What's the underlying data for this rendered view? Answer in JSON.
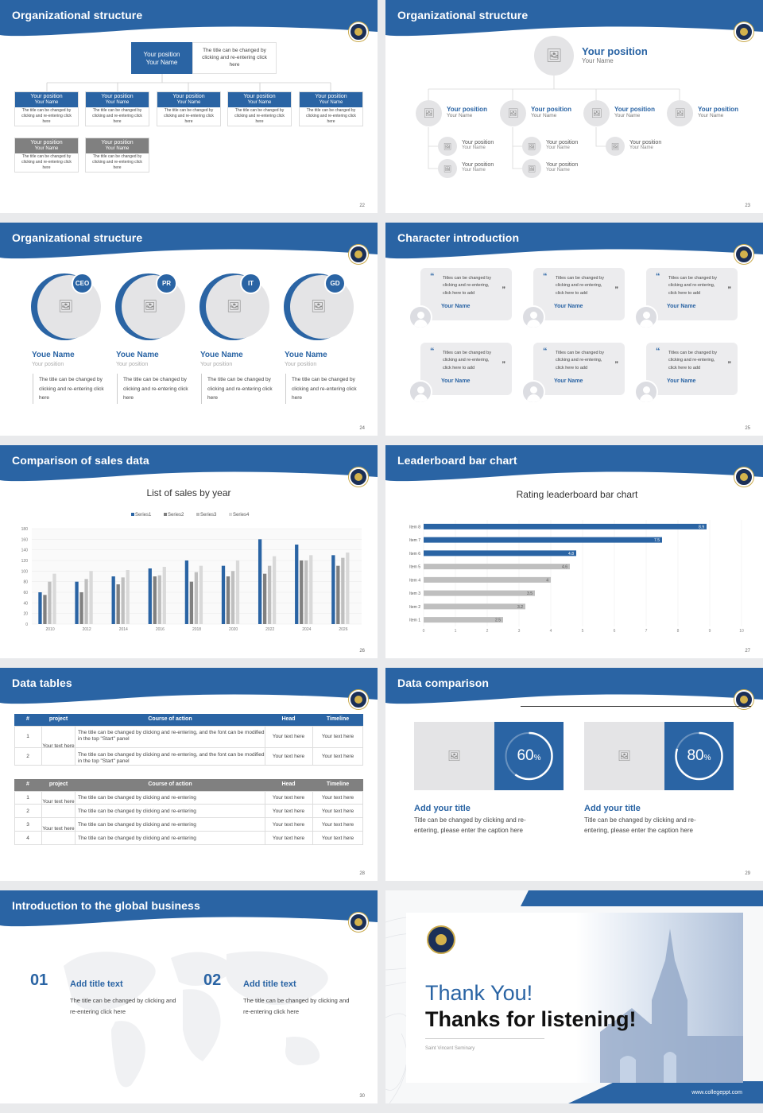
{
  "colors": {
    "accent": "#2a64a4",
    "gray": "#808080",
    "light": "#e4e4e6"
  },
  "icons": {
    "picture": "picture-plus-icon",
    "quote": "quote-icon",
    "user": "user-avatar-icon",
    "logo": "seminary-seal-logo"
  },
  "s22": {
    "title": "Organizational structure",
    "page": "22",
    "top": {
      "pos": "Your position",
      "name": "Your Name",
      "note": "The title can be changed by clicking and re-entering click here"
    },
    "row1": [
      {
        "pos": "Your position",
        "name": "Your Name",
        "note": "The title can be changed by clicking and re-entering click here"
      },
      {
        "pos": "Your position",
        "name": "Your Name",
        "note": "The title can be changed by clicking and re-entering click here"
      },
      {
        "pos": "Your position",
        "name": "Your Name",
        "note": "The title can be changed by clicking and re-entering click here"
      },
      {
        "pos": "Your position",
        "name": "Your Name",
        "note": "The title can be changed by clicking and re-entering click here"
      },
      {
        "pos": "Your position",
        "name": "Your Name",
        "note": "The title can be changed by clicking and re-entering click here"
      }
    ],
    "row2": [
      {
        "pos": "Your position",
        "name": "Your Name",
        "note": "The title can be changed by clicking and re-entering click here"
      },
      {
        "pos": "Your position",
        "name": "Your Name",
        "note": "The title can be changed by clicking and re-entering click here"
      }
    ]
  },
  "s23": {
    "title": "Organizational structure",
    "page": "23",
    "top": {
      "pos": "Your position",
      "name": "Your Name"
    },
    "mid": [
      {
        "pos": "Your position",
        "name": "Your Name"
      },
      {
        "pos": "Your position",
        "name": "Your Name"
      },
      {
        "pos": "Your position",
        "name": "Your Name"
      },
      {
        "pos": "Your position",
        "name": "Your Name"
      }
    ],
    "low": [
      {
        "pos": "Your position",
        "name": "Your Name"
      },
      {
        "pos": "Your position",
        "name": "Your Name"
      },
      {
        "pos": "Your position",
        "name": "Your Name"
      },
      {
        "pos": "Your position",
        "name": "Your Name"
      },
      {
        "pos": "Your position",
        "name": "Your Name"
      }
    ]
  },
  "s24": {
    "title": "Organizational structure",
    "page": "24",
    "members": [
      {
        "badge": "CEO",
        "name": "Youe Name",
        "pos": "Your position",
        "desc": "The title can be changed by clicking and re-entering click here"
      },
      {
        "badge": "PR",
        "name": "Youe Name",
        "pos": "Your position",
        "desc": "The title can be changed by clicking and re-entering click here"
      },
      {
        "badge": "IT",
        "name": "Youe Name",
        "pos": "Your position",
        "desc": "The title can be changed by clicking and re-entering click here"
      },
      {
        "badge": "GD",
        "name": "Youe Name",
        "pos": "Your position",
        "desc": "The title can be changed by clicking and re-entering click here"
      }
    ]
  },
  "s25": {
    "title": "Character introduction",
    "page": "25",
    "quote": "Titles can be changed by clicking and re-entering, click here to add",
    "name": "Your Name"
  },
  "s26": {
    "title": "Comparison of sales data",
    "page": "26"
  },
  "s27": {
    "title": "Leaderboard bar chart",
    "page": "27"
  },
  "chart_data": [
    {
      "type": "bar",
      "title": "List of sales by year",
      "categories": [
        "2010",
        "2012",
        "2014",
        "2016",
        "2018",
        "2020",
        "2022",
        "2024",
        "2026"
      ],
      "series": [
        {
          "name": "Series1",
          "values": [
            60,
            80,
            90,
            105,
            120,
            110,
            160,
            150,
            130
          ]
        },
        {
          "name": "Series2",
          "values": [
            55,
            60,
            75,
            90,
            80,
            90,
            95,
            120,
            110
          ]
        },
        {
          "name": "Series3",
          "values": [
            80,
            85,
            88,
            92,
            98,
            100,
            110,
            120,
            125
          ]
        },
        {
          "name": "Series4",
          "values": [
            95,
            100,
            102,
            108,
            110,
            120,
            128,
            130,
            135
          ]
        }
      ],
      "ylim": [
        0,
        180
      ],
      "yticks": [
        "0",
        "20",
        "40",
        "60",
        "80",
        "100",
        "120",
        "140",
        "160",
        "180"
      ],
      "legend": "top",
      "grid": true
    },
    {
      "type": "bar",
      "orientation": "horizontal",
      "title": "Rating leaderboard bar chart",
      "categories": [
        "Item 8",
        "Item 7",
        "Item 6",
        "Item 5",
        "Item 4",
        "Item 3",
        "Item 2",
        "Item 1"
      ],
      "values": [
        8.9,
        7.5,
        4.8,
        4.6,
        4,
        3.5,
        3.2,
        2.5
      ],
      "labels": [
        "8.9",
        "7.5",
        "4.8",
        "4.6",
        "4",
        "3.5",
        "3.2",
        "2.5"
      ],
      "xlim": [
        0,
        10
      ],
      "xticks": [
        "0",
        "1",
        "2",
        "3",
        "4",
        "5",
        "6",
        "7",
        "8",
        "9",
        "10"
      ]
    }
  ],
  "s28": {
    "title": "Data tables",
    "page": "28",
    "t1": {
      "headers": [
        "#",
        "project",
        "Course of action",
        "Head",
        "Timeline"
      ],
      "project": "Your text here",
      "rows": [
        {
          "n": "1",
          "action": "The title can be changed by clicking and re-entering, and the font can be modified in the top \"Start\" panel",
          "head": "Your text here",
          "time": "Your text here"
        },
        {
          "n": "2",
          "action": "The title can be changed by clicking and re-entering, and the font can be modified in the top \"Start\" panel",
          "head": "Your text here",
          "time": "Your text here"
        }
      ]
    },
    "t2": {
      "headers": [
        "#",
        "project",
        "Course of action",
        "Head",
        "Timeline"
      ],
      "project1": "Your text here",
      "project2": "Your text here",
      "rows": [
        {
          "n": "1",
          "action": "The title can be changed by clicking and re-entering",
          "head": "Your text here",
          "time": "Your text here"
        },
        {
          "n": "2",
          "action": "The title can be changed by clicking and re-entering",
          "head": "Your text here",
          "time": "Your text here"
        },
        {
          "n": "3",
          "action": "The title can be changed by clicking and re-entering",
          "head": "Your text here",
          "time": "Your text here"
        },
        {
          "n": "4",
          "action": "The title can be changed by clicking and re-entering",
          "head": "Your text here",
          "time": "Your text here"
        }
      ]
    }
  },
  "s29": {
    "title": "Data comparison",
    "page": "29",
    "cards": [
      {
        "percent": 60,
        "value": "60",
        "unit": "%",
        "heading": "Add your title",
        "desc": "Title can be changed by clicking and re-entering, please enter the caption here"
      },
      {
        "percent": 80,
        "value": "80",
        "unit": "%",
        "heading": "Add your title",
        "desc": "Title can be changed by clicking and re-entering, please enter the caption here"
      }
    ]
  },
  "s30": {
    "title": "Introduction to the global business",
    "page": "30",
    "items": [
      {
        "num": "01",
        "heading": "Add title text",
        "desc": "The title can be changed by clicking and re-entering click here"
      },
      {
        "num": "02",
        "heading": "Add title text",
        "desc": "The title can be changed by clicking and re-entering click here"
      }
    ]
  },
  "s31": {
    "thanks": "Thank You!",
    "sub": "Thanks for listening!",
    "school": "Saint Vincent Seminary",
    "url": "www.collegeppt.com"
  }
}
